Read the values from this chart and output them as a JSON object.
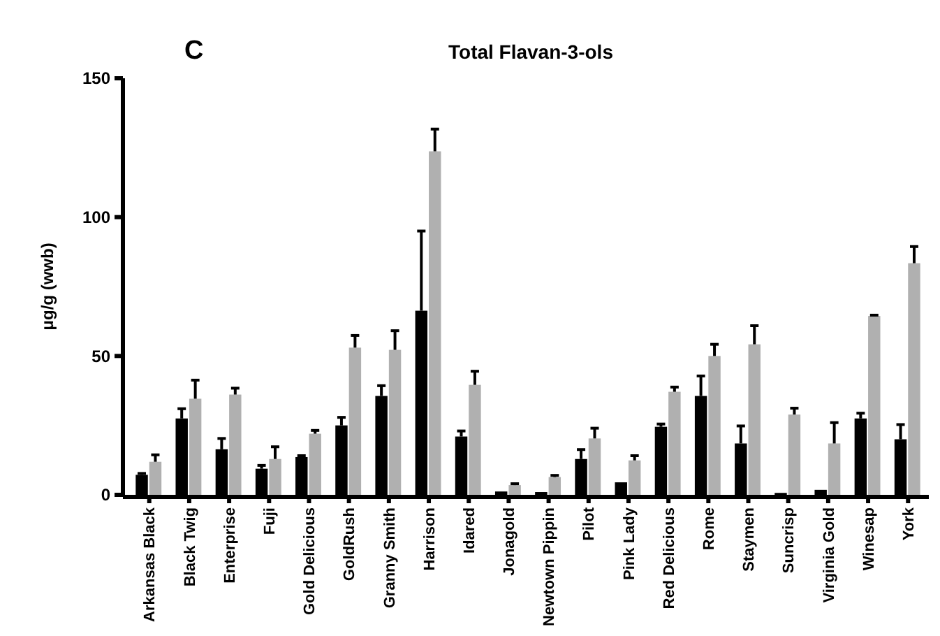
{
  "chart_data": {
    "type": "bar",
    "title": "Total Flavan-3-ols",
    "ylabel": "μg/g (wwb)",
    "annotations": [
      "C"
    ],
    "categories": [
      "Arkansas Black",
      "Black Twig",
      "Enterprise",
      "Fuji",
      "Gold Delicious",
      "GoldRush",
      "Granny Smith",
      "Harrison",
      "Idared",
      "Jonagold",
      "Newtown Pippin",
      "Pilot",
      "Pink Lady",
      "Red Delicious",
      "Rome",
      "Staymen",
      "Suncrisp",
      "Virginia Gold",
      "Winesap",
      "York"
    ],
    "series": [
      {
        "color": "#000000",
        "values": [
          7.2,
          27.5,
          16.4,
          9.4,
          13.6,
          25.0,
          35.6,
          66.3,
          21.0,
          1.2,
          1.0,
          12.9,
          4.5,
          24.5,
          35.6,
          18.5,
          0.7,
          1.8,
          27.5,
          20.0
        ],
        "errors": [
          [
            7.2,
            7.7
          ],
          [
            27.5,
            31.0
          ],
          [
            16.4,
            20.3
          ],
          [
            9.4,
            10.6
          ],
          [
            13.6,
            14.1
          ],
          [
            25.0,
            27.9
          ],
          [
            35.6,
            39.3
          ],
          [
            66.3,
            95.0
          ],
          [
            21.0,
            23.0
          ],
          null,
          null,
          [
            12.9,
            16.3
          ],
          null,
          [
            24.5,
            25.5
          ],
          [
            35.6,
            42.8
          ],
          [
            18.5,
            24.8
          ],
          null,
          null,
          [
            27.5,
            29.4
          ],
          [
            20.0,
            25.3
          ]
        ]
      },
      {
        "color": "#b0b0b0",
        "values": [
          11.9,
          34.6,
          36.1,
          12.9,
          22.0,
          53.0,
          52.2,
          123.7,
          39.6,
          3.5,
          6.4,
          20.3,
          12.4,
          37.1,
          50.0,
          54.2,
          28.9,
          18.5,
          64.4,
          83.4
        ],
        "errors": [
          [
            11.9,
            14.4
          ],
          [
            34.6,
            41.3
          ],
          [
            36.1,
            38.4
          ],
          [
            12.9,
            17.3
          ],
          [
            22.0,
            23.2
          ],
          [
            53.0,
            57.4
          ],
          [
            52.2,
            59.1
          ],
          [
            123.7,
            131.7
          ],
          [
            39.6,
            44.5
          ],
          [
            3.5,
            4.0
          ],
          [
            6.4,
            7.0
          ],
          [
            20.3,
            24.0
          ],
          [
            12.4,
            14.1
          ],
          [
            37.1,
            38.8
          ],
          [
            50.0,
            54.2
          ],
          [
            54.2,
            60.9
          ],
          [
            28.9,
            31.2
          ],
          [
            18.5,
            26.0
          ],
          [
            64.4,
            64.7
          ],
          [
            83.4,
            89.4
          ]
        ]
      }
    ],
    "ylim": [
      0,
      150
    ],
    "yticks": [
      0,
      50,
      100,
      150
    ],
    "grid": false
  }
}
